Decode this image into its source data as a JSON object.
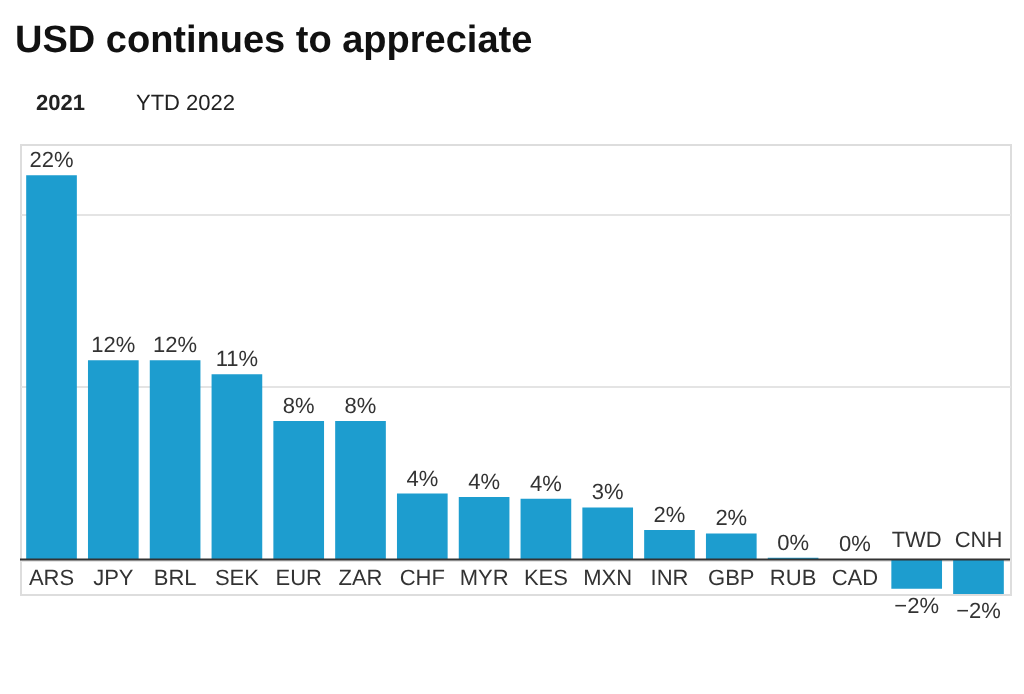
{
  "chart_data": {
    "type": "bar",
    "title": "USD continues to appreciate",
    "annotations": [
      "2021",
      "YTD 2022"
    ],
    "categories": [
      "ARS",
      "JPY",
      "BRL",
      "SEK",
      "EUR",
      "ZAR",
      "CHF",
      "MYR",
      "KES",
      "MXN",
      "INR",
      "GBP",
      "RUB",
      "CAD",
      "TWD",
      "CNH"
    ],
    "values": [
      22.2,
      11.5,
      11.5,
      10.7,
      8.0,
      8.0,
      3.8,
      3.6,
      3.5,
      3.0,
      1.7,
      1.5,
      0.1,
      0,
      -1.7,
      -2.0
    ],
    "value_labels": [
      "22%",
      "12%",
      "12%",
      "11%",
      "8%",
      "8%",
      "4%",
      "4%",
      "4%",
      "3%",
      "2%",
      "2%",
      "0%",
      "0%",
      "−2%",
      "−2%"
    ],
    "color": "#1d9dcf",
    "grid": "y",
    "tick_labels": "x"
  }
}
